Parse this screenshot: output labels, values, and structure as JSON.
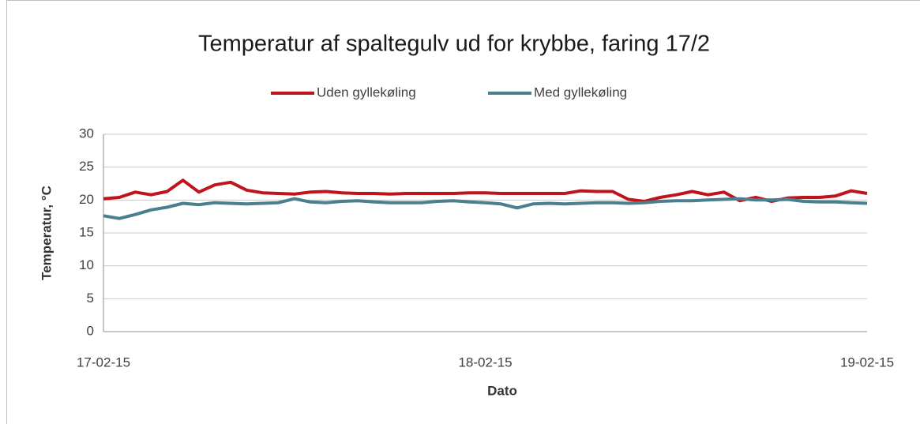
{
  "chart_data": {
    "type": "line",
    "title": "Temperatur af spaltegulv ud for krybbe, faring 17/2",
    "xlabel": "Dato",
    "ylabel": "Temperatur, °C",
    "categories": [
      "17-02-15",
      null,
      null,
      null,
      null,
      null,
      null,
      null,
      null,
      null,
      null,
      null,
      null,
      null,
      null,
      null,
      null,
      null,
      null,
      null,
      null,
      null,
      null,
      null,
      "18-02-15",
      null,
      null,
      null,
      null,
      null,
      null,
      null,
      null,
      null,
      null,
      null,
      null,
      null,
      null,
      null,
      null,
      null,
      null,
      null,
      null,
      null,
      null,
      null,
      "19-02-15"
    ],
    "series": [
      {
        "name": "Uden gyllekøling",
        "color": "#c0141c",
        "values": [
          20.2,
          20.4,
          21.2,
          20.8,
          21.3,
          23.0,
          21.2,
          22.3,
          22.7,
          21.5,
          21.1,
          21.0,
          20.9,
          21.2,
          21.3,
          21.1,
          21.0,
          21.0,
          20.9,
          21.0,
          21.0,
          21.0,
          21.0,
          21.1,
          21.1,
          21.0,
          21.0,
          21.0,
          21.0,
          21.0,
          21.4,
          21.3,
          21.3,
          20.1,
          19.8,
          20.4,
          20.8,
          21.3,
          20.8,
          21.2,
          19.9,
          20.4,
          19.8,
          20.3,
          20.4,
          20.4,
          20.6,
          21.4,
          21.0
        ]
      },
      {
        "name": "Med gyllekøling",
        "color": "#4a7f8f",
        "values": [
          17.6,
          17.2,
          17.8,
          18.5,
          18.9,
          19.5,
          19.3,
          19.6,
          19.5,
          19.4,
          19.5,
          19.6,
          20.2,
          19.7,
          19.6,
          19.8,
          19.9,
          19.7,
          19.6,
          19.6,
          19.6,
          19.8,
          19.9,
          19.7,
          19.6,
          19.4,
          18.8,
          19.4,
          19.5,
          19.4,
          19.5,
          19.6,
          19.6,
          19.5,
          19.6,
          19.8,
          19.9,
          19.9,
          20.0,
          20.1,
          20.2,
          20.0,
          20.0,
          20.1,
          19.8,
          19.7,
          19.7,
          19.6,
          19.5
        ]
      }
    ],
    "ylim": [
      0,
      30
    ],
    "yticks": [
      0,
      5,
      10,
      15,
      20,
      25,
      30
    ],
    "grid": true,
    "legend": "top"
  }
}
